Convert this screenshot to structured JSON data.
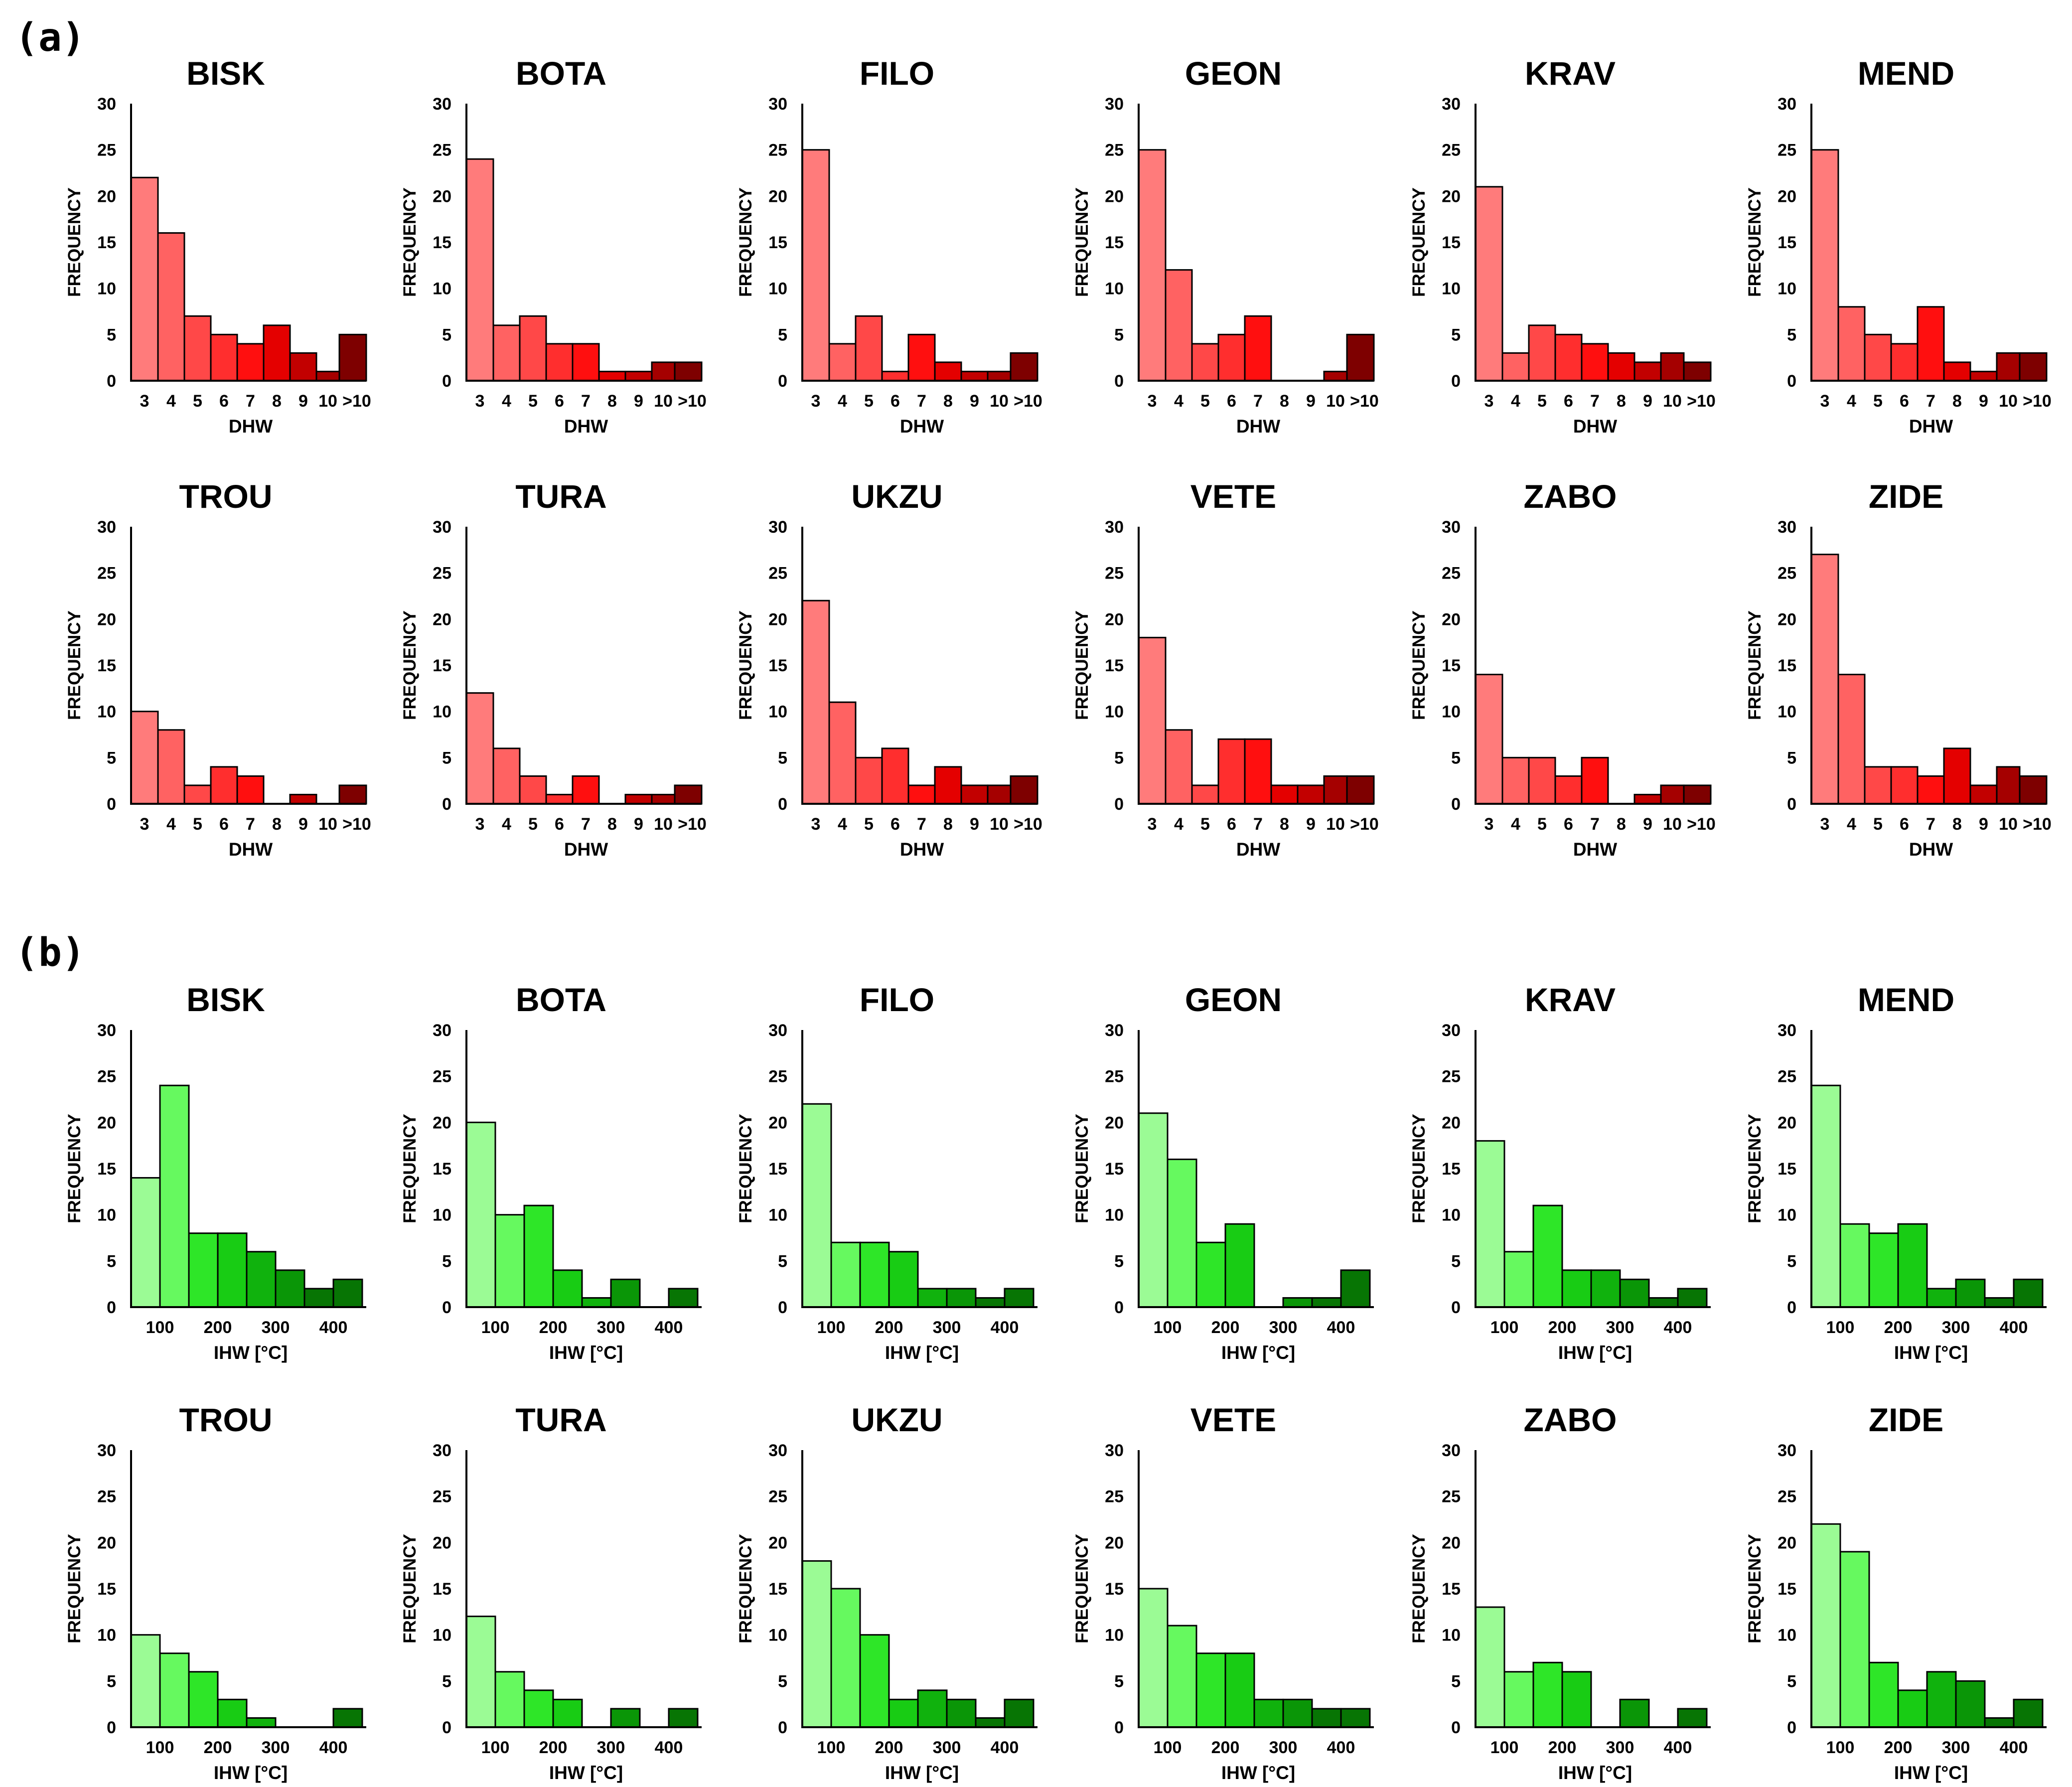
{
  "panels": [
    {
      "label": "(a)"
    },
    {
      "label": "(b)"
    }
  ],
  "colors": {
    "dhw": [
      "#ff7b7b",
      "#ff6262",
      "#ff4848",
      "#ff2e2e",
      "#ff0f0f",
      "#e40000",
      "#c20000",
      "#a50000",
      "#7e0000"
    ],
    "ihw": [
      "#9bfb95",
      "#66f95f",
      "#2ee628",
      "#18cc14",
      "#10b20d",
      "#0a9607",
      "#077504"
    ]
  },
  "chart_data": [
    {
      "type": "bar",
      "panel": "(a)",
      "title": "BISK",
      "xlabel": "DHW",
      "ylabel": "FREQUENCY",
      "ylim": [
        0,
        30
      ],
      "yticks": [
        "0",
        "5",
        "10",
        "15",
        "20",
        "25",
        "30"
      ],
      "categories": [
        "3",
        "4",
        "5",
        "6",
        "7",
        "8",
        "9",
        "10",
        ">10"
      ],
      "values": [
        22,
        16,
        7,
        5,
        4,
        6,
        3,
        1,
        5
      ]
    },
    {
      "type": "bar",
      "panel": "(a)",
      "title": "BOTA",
      "xlabel": "DHW",
      "ylabel": "FREQUENCY",
      "ylim": [
        0,
        30
      ],
      "yticks": [
        "0",
        "5",
        "10",
        "15",
        "20",
        "25",
        "30"
      ],
      "categories": [
        "3",
        "4",
        "5",
        "6",
        "7",
        "8",
        "9",
        "10",
        ">10"
      ],
      "values": [
        24,
        6,
        7,
        4,
        4,
        1,
        1,
        2,
        2
      ]
    },
    {
      "type": "bar",
      "panel": "(a)",
      "title": "FILO",
      "xlabel": "DHW",
      "ylabel": "FREQUENCY",
      "ylim": [
        0,
        30
      ],
      "yticks": [
        "0",
        "5",
        "10",
        "15",
        "20",
        "25",
        "30"
      ],
      "categories": [
        "3",
        "4",
        "5",
        "6",
        "7",
        "8",
        "9",
        "10",
        ">10"
      ],
      "values": [
        25,
        4,
        7,
        1,
        5,
        2,
        1,
        1,
        3
      ]
    },
    {
      "type": "bar",
      "panel": "(a)",
      "title": "GEON",
      "xlabel": "DHW",
      "ylabel": "FREQUENCY",
      "ylim": [
        0,
        30
      ],
      "yticks": [
        "0",
        "5",
        "10",
        "15",
        "20",
        "25",
        "30"
      ],
      "categories": [
        "3",
        "4",
        "5",
        "6",
        "7",
        "8",
        "9",
        "10",
        ">10"
      ],
      "values": [
        25,
        12,
        4,
        5,
        7,
        0,
        0,
        1,
        5
      ]
    },
    {
      "type": "bar",
      "panel": "(a)",
      "title": "KRAV",
      "xlabel": "DHW",
      "ylabel": "FREQUENCY",
      "ylim": [
        0,
        30
      ],
      "yticks": [
        "0",
        "5",
        "10",
        "15",
        "20",
        "25",
        "30"
      ],
      "categories": [
        "3",
        "4",
        "5",
        "6",
        "7",
        "8",
        "9",
        "10",
        ">10"
      ],
      "values": [
        21,
        3,
        6,
        5,
        4,
        3,
        2,
        3,
        2
      ]
    },
    {
      "type": "bar",
      "panel": "(a)",
      "title": "MEND",
      "xlabel": "DHW",
      "ylabel": "FREQUENCY",
      "ylim": [
        0,
        30
      ],
      "yticks": [
        "0",
        "5",
        "10",
        "15",
        "20",
        "25",
        "30"
      ],
      "categories": [
        "3",
        "4",
        "5",
        "6",
        "7",
        "8",
        "9",
        "10",
        ">10"
      ],
      "values": [
        25,
        8,
        5,
        4,
        8,
        2,
        1,
        3,
        3
      ]
    },
    {
      "type": "bar",
      "panel": "(a)",
      "title": "TROU",
      "xlabel": "DHW",
      "ylabel": "FREQUENCY",
      "ylim": [
        0,
        30
      ],
      "yticks": [
        "0",
        "5",
        "10",
        "15",
        "20",
        "25",
        "30"
      ],
      "categories": [
        "3",
        "4",
        "5",
        "6",
        "7",
        "8",
        "9",
        "10",
        ">10"
      ],
      "values": [
        10,
        8,
        2,
        4,
        3,
        0,
        1,
        0,
        2
      ]
    },
    {
      "type": "bar",
      "panel": "(a)",
      "title": "TURA",
      "xlabel": "DHW",
      "ylabel": "FREQUENCY",
      "ylim": [
        0,
        30
      ],
      "yticks": [
        "0",
        "5",
        "10",
        "15",
        "20",
        "25",
        "30"
      ],
      "categories": [
        "3",
        "4",
        "5",
        "6",
        "7",
        "8",
        "9",
        "10",
        ">10"
      ],
      "values": [
        12,
        6,
        3,
        1,
        3,
        0,
        1,
        1,
        2
      ]
    },
    {
      "type": "bar",
      "panel": "(a)",
      "title": "UKZU",
      "xlabel": "DHW",
      "ylabel": "FREQUENCY",
      "ylim": [
        0,
        30
      ],
      "yticks": [
        "0",
        "5",
        "10",
        "15",
        "20",
        "25",
        "30"
      ],
      "categories": [
        "3",
        "4",
        "5",
        "6",
        "7",
        "8",
        "9",
        "10",
        ">10"
      ],
      "values": [
        22,
        11,
        5,
        6,
        2,
        4,
        2,
        2,
        3
      ]
    },
    {
      "type": "bar",
      "panel": "(a)",
      "title": "VETE",
      "xlabel": "DHW",
      "ylabel": "FREQUENCY",
      "ylim": [
        0,
        30
      ],
      "yticks": [
        "0",
        "5",
        "10",
        "15",
        "20",
        "25",
        "30"
      ],
      "categories": [
        "3",
        "4",
        "5",
        "6",
        "7",
        "8",
        "9",
        "10",
        ">10"
      ],
      "values": [
        18,
        8,
        2,
        7,
        7,
        2,
        2,
        3,
        3
      ]
    },
    {
      "type": "bar",
      "panel": "(a)",
      "title": "ZABO",
      "xlabel": "DHW",
      "ylabel": "FREQUENCY",
      "ylim": [
        0,
        30
      ],
      "yticks": [
        "0",
        "5",
        "10",
        "15",
        "20",
        "25",
        "30"
      ],
      "categories": [
        "3",
        "4",
        "5",
        "6",
        "7",
        "8",
        "9",
        "10",
        ">10"
      ],
      "values": [
        14,
        5,
        5,
        3,
        5,
        0,
        1,
        2,
        2
      ]
    },
    {
      "type": "bar",
      "panel": "(a)",
      "title": "ZIDE",
      "xlabel": "DHW",
      "ylabel": "FREQUENCY",
      "ylim": [
        0,
        30
      ],
      "yticks": [
        "0",
        "5",
        "10",
        "15",
        "20",
        "25",
        "30"
      ],
      "categories": [
        "3",
        "4",
        "5",
        "6",
        "7",
        "8",
        "9",
        "10",
        ">10"
      ],
      "values": [
        27,
        14,
        4,
        4,
        3,
        6,
        2,
        4,
        3
      ]
    },
    {
      "type": "bar",
      "panel": "(b)",
      "title": "BISK",
      "xlabel": "IHW [°C]",
      "ylabel": "FREQUENCY",
      "ylim": [
        0,
        30
      ],
      "yticks": [
        "0",
        "5",
        "10",
        "15",
        "20",
        "25",
        "30"
      ],
      "xticks": [
        "100",
        "200",
        "300",
        "400"
      ],
      "values": [
        14,
        24,
        8,
        8,
        6,
        4,
        2,
        3
      ]
    },
    {
      "type": "bar",
      "panel": "(b)",
      "title": "BOTA",
      "xlabel": "IHW [°C]",
      "ylabel": "FREQUENCY",
      "ylim": [
        0,
        30
      ],
      "yticks": [
        "0",
        "5",
        "10",
        "15",
        "20",
        "25",
        "30"
      ],
      "xticks": [
        "100",
        "200",
        "300",
        "400"
      ],
      "values": [
        20,
        10,
        11,
        4,
        1,
        3,
        0,
        2
      ]
    },
    {
      "type": "bar",
      "panel": "(b)",
      "title": "FILO",
      "xlabel": "IHW [°C]",
      "ylabel": "FREQUENCY",
      "ylim": [
        0,
        30
      ],
      "yticks": [
        "0",
        "5",
        "10",
        "15",
        "20",
        "25",
        "30"
      ],
      "xticks": [
        "100",
        "200",
        "300",
        "400"
      ],
      "values": [
        22,
        7,
        7,
        6,
        2,
        2,
        1,
        2
      ]
    },
    {
      "type": "bar",
      "panel": "(b)",
      "title": "GEON",
      "xlabel": "IHW [°C]",
      "ylabel": "FREQUENCY",
      "ylim": [
        0,
        30
      ],
      "yticks": [
        "0",
        "5",
        "10",
        "15",
        "20",
        "25",
        "30"
      ],
      "xticks": [
        "100",
        "200",
        "300",
        "400"
      ],
      "values": [
        21,
        16,
        7,
        9,
        0,
        1,
        1,
        4
      ]
    },
    {
      "type": "bar",
      "panel": "(b)",
      "title": "KRAV",
      "xlabel": "IHW [°C]",
      "ylabel": "FREQUENCY",
      "ylim": [
        0,
        30
      ],
      "yticks": [
        "0",
        "5",
        "10",
        "15",
        "20",
        "25",
        "30"
      ],
      "xticks": [
        "100",
        "200",
        "300",
        "400"
      ],
      "values": [
        18,
        6,
        11,
        4,
        4,
        3,
        1,
        2
      ]
    },
    {
      "type": "bar",
      "panel": "(b)",
      "title": "MEND",
      "xlabel": "IHW [°C]",
      "ylabel": "FREQUENCY",
      "ylim": [
        0,
        30
      ],
      "yticks": [
        "0",
        "5",
        "10",
        "15",
        "20",
        "25",
        "30"
      ],
      "xticks": [
        "100",
        "200",
        "300",
        "400"
      ],
      "values": [
        24,
        9,
        8,
        9,
        2,
        3,
        1,
        3
      ]
    },
    {
      "type": "bar",
      "panel": "(b)",
      "title": "TROU",
      "xlabel": "IHW [°C]",
      "ylabel": "FREQUENCY",
      "ylim": [
        0,
        30
      ],
      "yticks": [
        "0",
        "5",
        "10",
        "15",
        "20",
        "25",
        "30"
      ],
      "xticks": [
        "100",
        "200",
        "300",
        "400"
      ],
      "values": [
        10,
        8,
        6,
        3,
        1,
        0,
        0,
        2
      ]
    },
    {
      "type": "bar",
      "panel": "(b)",
      "title": "TURA",
      "xlabel": "IHW [°C]",
      "ylabel": "FREQUENCY",
      "ylim": [
        0,
        30
      ],
      "yticks": [
        "0",
        "5",
        "10",
        "15",
        "20",
        "25",
        "30"
      ],
      "xticks": [
        "100",
        "200",
        "300",
        "400"
      ],
      "values": [
        12,
        6,
        4,
        3,
        0,
        2,
        0,
        2
      ]
    },
    {
      "type": "bar",
      "panel": "(b)",
      "title": "UKZU",
      "xlabel": "IHW [°C]",
      "ylabel": "FREQUENCY",
      "ylim": [
        0,
        30
      ],
      "yticks": [
        "0",
        "5",
        "10",
        "15",
        "20",
        "25",
        "30"
      ],
      "xticks": [
        "100",
        "200",
        "300",
        "400"
      ],
      "values": [
        18,
        15,
        10,
        3,
        4,
        3,
        1,
        3
      ]
    },
    {
      "type": "bar",
      "panel": "(b)",
      "title": "VETE",
      "xlabel": "IHW [°C]",
      "ylabel": "FREQUENCY",
      "ylim": [
        0,
        30
      ],
      "yticks": [
        "0",
        "5",
        "10",
        "15",
        "20",
        "25",
        "30"
      ],
      "xticks": [
        "100",
        "200",
        "300",
        "400"
      ],
      "values": [
        15,
        11,
        8,
        8,
        3,
        3,
        2,
        2
      ]
    },
    {
      "type": "bar",
      "panel": "(b)",
      "title": "ZABO",
      "xlabel": "IHW [°C]",
      "ylabel": "FREQUENCY",
      "ylim": [
        0,
        30
      ],
      "yticks": [
        "0",
        "5",
        "10",
        "15",
        "20",
        "25",
        "30"
      ],
      "xticks": [
        "100",
        "200",
        "300",
        "400"
      ],
      "values": [
        13,
        6,
        7,
        6,
        0,
        3,
        0,
        2
      ]
    },
    {
      "type": "bar",
      "panel": "(b)",
      "title": "ZIDE",
      "xlabel": "IHW [°C]",
      "ylabel": "FREQUENCY",
      "ylim": [
        0,
        30
      ],
      "yticks": [
        "0",
        "5",
        "10",
        "15",
        "20",
        "25",
        "30"
      ],
      "xticks": [
        "100",
        "200",
        "300",
        "400"
      ],
      "values": [
        22,
        19,
        7,
        4,
        6,
        5,
        1,
        3
      ]
    }
  ]
}
